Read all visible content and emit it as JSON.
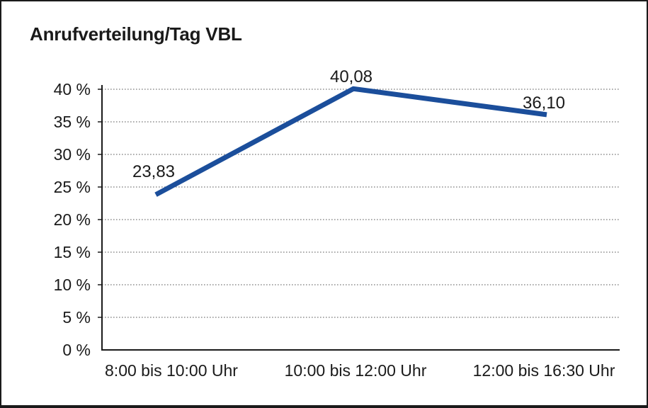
{
  "title": "Anrufverteilung/Tag VBL",
  "chart_data": {
    "type": "line",
    "title": "Anrufverteilung/Tag VBL",
    "categories": [
      "8:00 bis 10:00 Uhr",
      "10:00 bis 12:00 Uhr",
      "12:00 bis 16:30 Uhr"
    ],
    "series": [
      {
        "name": "Anrufverteilung",
        "values": [
          23.83,
          40.08,
          36.1
        ],
        "value_labels": [
          "23,83",
          "40,08",
          "36,10"
        ]
      }
    ],
    "xlabel": "",
    "ylabel": "",
    "ylim": [
      0,
      40
    ],
    "ytick_step": 5,
    "ytick_labels": [
      "0 %",
      "5 %",
      "10 %",
      "15 %",
      "20 %",
      "25 %",
      "30 %",
      "35 %",
      "40 %"
    ],
    "grid": "horizontal-dotted",
    "legend_position": "none",
    "colors": {
      "line": "#1B4E9B",
      "axis": "#1a1a1a",
      "gridline": "#7a7a7a",
      "text": "#1a1a1a",
      "background": "#ffffff"
    }
  }
}
